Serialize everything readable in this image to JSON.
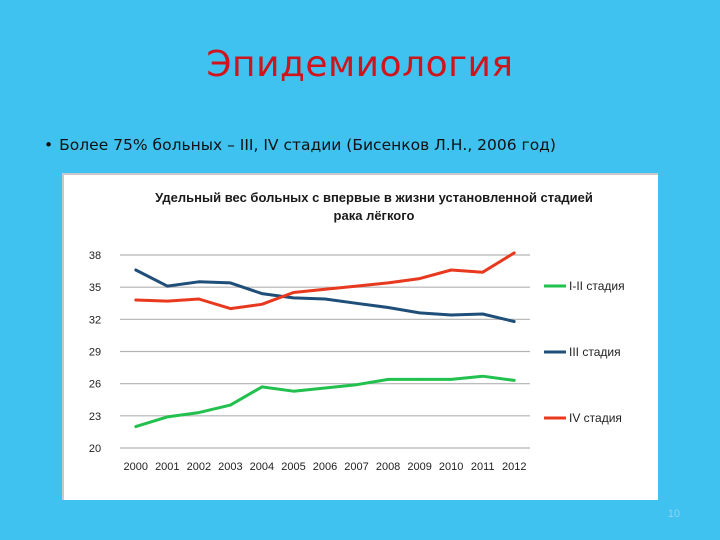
{
  "slide": {
    "title": "Эпидемиология",
    "bullet": "Более 75% больных – III, IV стадии (Бисенков Л.Н., 2006 год)",
    "bullet_marker": "•",
    "page_number": "10"
  },
  "colors": {
    "background": "#3fc2f0",
    "title": "#d0141c",
    "series_1": "#22c04e",
    "series_2": "#1f4e79",
    "series_3": "#e8391e",
    "grid": "#b3b3b3"
  },
  "chart_data": {
    "type": "line",
    "title_line1": "Удельный вес больных с впервые в жизни установленной стадией",
    "title_line2": "рака лёгкого",
    "x": [
      "2000",
      "2001",
      "2002",
      "2003",
      "2004",
      "2005",
      "2006",
      "2007",
      "2008",
      "2009",
      "2010",
      "2011",
      "2012"
    ],
    "ylim": [
      20,
      38
    ],
    "yticks": [
      "20",
      "23",
      "26",
      "29",
      "32",
      "35",
      "38"
    ],
    "grid": true,
    "legend_position": "right",
    "series": [
      {
        "name": "I-II стадия",
        "values": [
          22.0,
          22.9,
          23.3,
          24.0,
          25.7,
          25.3,
          25.6,
          25.9,
          26.4,
          26.4,
          26.4,
          26.7,
          26.3
        ]
      },
      {
        "name": "III стадия",
        "values": [
          36.6,
          35.1,
          35.5,
          35.4,
          34.4,
          34.0,
          33.9,
          33.5,
          33.1,
          32.6,
          32.4,
          32.5,
          31.8
        ]
      },
      {
        "name": "IV стадия",
        "values": [
          33.8,
          33.7,
          33.9,
          33.0,
          33.4,
          34.5,
          34.8,
          35.1,
          35.4,
          35.8,
          36.6,
          36.4,
          38.2
        ]
      }
    ]
  }
}
